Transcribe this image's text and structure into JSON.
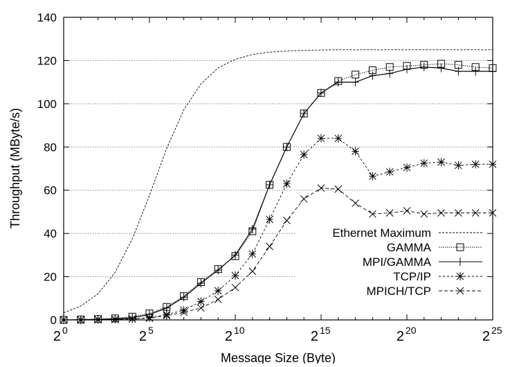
{
  "chart_data": {
    "type": "line",
    "title": "",
    "xlabel": "Message Size (Byte)",
    "ylabel": "Throughput (MByte/s)",
    "xscale": "log2",
    "xlim": [
      0,
      25
    ],
    "ylim": [
      0,
      140
    ],
    "xticks": [
      {
        "exp": 0,
        "label": "0"
      },
      {
        "exp": 5,
        "label": "5"
      },
      {
        "exp": 10,
        "label": "10"
      },
      {
        "exp": 15,
        "label": "15"
      },
      {
        "exp": 20,
        "label": "20"
      },
      {
        "exp": 25,
        "label": "25"
      }
    ],
    "xtick_base": "2",
    "yticks": [
      0,
      20,
      40,
      60,
      80,
      100,
      120,
      140
    ],
    "grid": "horizontal dotted",
    "legend_placement": "bottom-right",
    "x": [
      0,
      1,
      2,
      3,
      4,
      5,
      6,
      7,
      8,
      9,
      10,
      11,
      12,
      13,
      14,
      15,
      16,
      17,
      18,
      19,
      20,
      21,
      22,
      23,
      24,
      25
    ],
    "series": [
      {
        "name": "Ethernet Maximum",
        "style": "dashed-fine",
        "marker": "none",
        "values": [
          3.3,
          6.4,
          12.1,
          22.0,
          37.5,
          57.6,
          79.3,
          97.2,
          109.2,
          116.6,
          120.6,
          122.8,
          123.9,
          124.4,
          124.7,
          124.9,
          125,
          125,
          125,
          125,
          125,
          125,
          125,
          125,
          125,
          125
        ]
      },
      {
        "name": "GAMMA",
        "style": "dotted",
        "marker": "square",
        "values": [
          0,
          0.2,
          0.4,
          0.7,
          1.5,
          3,
          6,
          11,
          17.5,
          23.5,
          29.5,
          41,
          62.5,
          80,
          95.5,
          105,
          110.5,
          113.5,
          115.5,
          117,
          117.5,
          118,
          118.5,
          118,
          117,
          116.5
        ]
      },
      {
        "name": "MPI/GAMMA",
        "style": "solid",
        "marker": "plus",
        "values": [
          0,
          0.1,
          0.3,
          0.5,
          1,
          2.5,
          5.5,
          10.5,
          17,
          23,
          30,
          42,
          62.5,
          80,
          95.5,
          105,
          110,
          110,
          113,
          114,
          116,
          117,
          116.5,
          115,
          115,
          115
        ]
      },
      {
        "name": "TCP/IP",
        "style": "dashed-short",
        "marker": "star",
        "values": [
          0,
          0,
          0.2,
          0.3,
          0.5,
          1,
          2.5,
          4.5,
          8.5,
          13.5,
          20.5,
          30.5,
          46.5,
          63,
          76.5,
          84,
          84,
          78,
          66.5,
          68.5,
          70.5,
          72.5,
          73,
          71.5,
          72,
          72
        ]
      },
      {
        "name": "MPICH/TCP",
        "style": "dashed",
        "marker": "cross",
        "values": [
          0,
          0,
          0.1,
          0.2,
          0.4,
          0.8,
          2,
          3.5,
          5.5,
          9.5,
          15,
          22.5,
          34,
          46,
          56,
          61,
          60.5,
          54,
          49,
          49.5,
          50.5,
          49,
          49.5,
          49.5,
          49.5,
          49.5
        ]
      }
    ]
  }
}
